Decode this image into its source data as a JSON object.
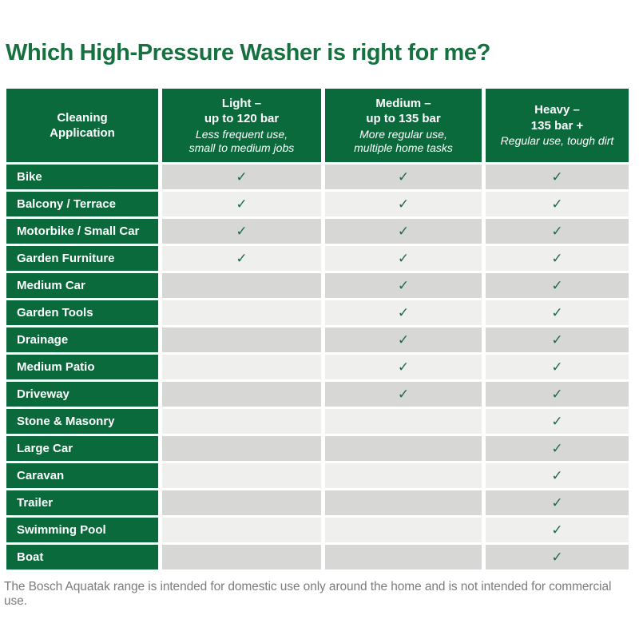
{
  "title": "Which High-Pressure Washer is right for me?",
  "header": {
    "application_label": "Cleaning\nApplication",
    "columns": [
      {
        "title": "Light –\nup to 120 bar",
        "subtitle": "Less frequent use,\nsmall to medium jobs"
      },
      {
        "title": "Medium –\nup to 135 bar",
        "subtitle": "More regular use,\nmultiple home tasks"
      },
      {
        "title": "Heavy –\n135 bar +",
        "subtitle": "Regular use, tough dirt"
      }
    ]
  },
  "table": {
    "rows": [
      {
        "label": "Bike",
        "light": true,
        "medium": true,
        "heavy": true
      },
      {
        "label": "Balcony / Terrace",
        "light": true,
        "medium": true,
        "heavy": true
      },
      {
        "label": "Motorbike / Small Car",
        "light": true,
        "medium": true,
        "heavy": true
      },
      {
        "label": "Garden Furniture",
        "light": true,
        "medium": true,
        "heavy": true
      },
      {
        "label": "Medium Car",
        "light": false,
        "medium": true,
        "heavy": true
      },
      {
        "label": "Garden Tools",
        "light": false,
        "medium": true,
        "heavy": true
      },
      {
        "label": "Drainage",
        "light": false,
        "medium": true,
        "heavy": true
      },
      {
        "label": "Medium Patio",
        "light": false,
        "medium": true,
        "heavy": true
      },
      {
        "label": "Driveway",
        "light": false,
        "medium": true,
        "heavy": true
      },
      {
        "label": "Stone & Masonry",
        "light": false,
        "medium": false,
        "heavy": true
      },
      {
        "label": "Large Car",
        "light": false,
        "medium": false,
        "heavy": true
      },
      {
        "label": "Caravan",
        "light": false,
        "medium": false,
        "heavy": true
      },
      {
        "label": "Trailer",
        "light": false,
        "medium": false,
        "heavy": true
      },
      {
        "label": "Swimming Pool",
        "light": false,
        "medium": false,
        "heavy": true
      },
      {
        "label": "Boat",
        "light": false,
        "medium": false,
        "heavy": true
      }
    ]
  },
  "footer": "The Bosch Aquatak range is intended for domestic use only around the home and is not intended for commercial use.",
  "icons": {
    "check_icon": "✓"
  },
  "colors": {
    "brand_green": "#0b6a3c",
    "title_green": "#17703f",
    "check_green": "#20694a",
    "row_gray_dark": "#d7d7d5",
    "row_gray_light": "#efefee",
    "footer_gray": "#7c7c7c"
  },
  "chart_data": {
    "type": "table",
    "title": "Which High-Pressure Washer is right for me?",
    "columns": [
      "Cleaning Application",
      "Light – up to 120 bar",
      "Medium – up to 135 bar",
      "Heavy – 135 bar +"
    ],
    "column_subtitles": [
      "",
      "Less frequent use, small to medium jobs",
      "More regular use, multiple home tasks",
      "Regular use, tough dirt"
    ],
    "rows": [
      [
        "Bike",
        true,
        true,
        true
      ],
      [
        "Balcony / Terrace",
        true,
        true,
        true
      ],
      [
        "Motorbike / Small Car",
        true,
        true,
        true
      ],
      [
        "Garden Furniture",
        true,
        true,
        true
      ],
      [
        "Medium Car",
        false,
        true,
        true
      ],
      [
        "Garden Tools",
        false,
        true,
        true
      ],
      [
        "Drainage",
        false,
        true,
        true
      ],
      [
        "Medium Patio",
        false,
        true,
        true
      ],
      [
        "Driveway",
        false,
        true,
        true
      ],
      [
        "Stone & Masonry",
        false,
        false,
        true
      ],
      [
        "Large Car",
        false,
        false,
        true
      ],
      [
        "Caravan",
        false,
        false,
        true
      ],
      [
        "Trailer",
        false,
        false,
        true
      ],
      [
        "Swimming Pool",
        false,
        false,
        true
      ],
      [
        "Boat",
        false,
        false,
        true
      ]
    ],
    "note": "The Bosch Aquatak range is intended for domestic use only around the home and is not intended for commercial use."
  }
}
